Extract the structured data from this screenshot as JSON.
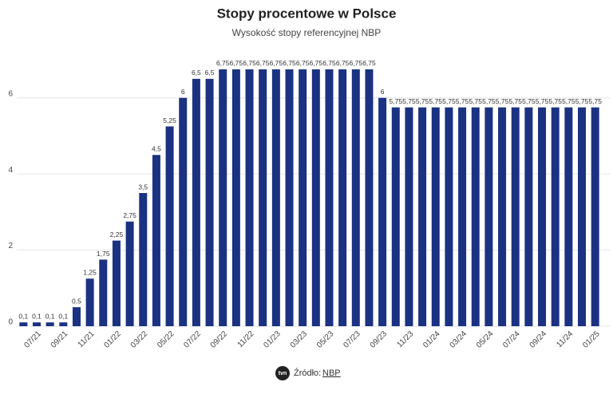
{
  "chart_data": {
    "type": "bar",
    "title": "Stopy procentowe w Polsce",
    "subtitle": "Wysokość stopy referencyjnej NBP",
    "categories": [
      null,
      "07/21",
      null,
      "09/21",
      null,
      "11/21",
      null,
      "01/22",
      null,
      "03/22",
      null,
      "05/22",
      null,
      "07/22",
      null,
      "09/22",
      null,
      "11/22",
      null,
      "01/23",
      null,
      "03/23",
      null,
      "05/23",
      null,
      "07/23",
      null,
      "09/23",
      null,
      "11/23",
      null,
      "01/24",
      null,
      "03/24",
      null,
      "05/24",
      null,
      "07/24",
      null,
      "09/24",
      null,
      "11/24",
      null,
      "01/25"
    ],
    "values": [
      0.1,
      0.1,
      0.1,
      0.1,
      0.5,
      1.25,
      1.75,
      2.25,
      2.75,
      3.5,
      4.5,
      5.25,
      6,
      6.5,
      6.5,
      6.75,
      6.75,
      6.75,
      6.75,
      6.75,
      6.75,
      6.75,
      6.75,
      6.75,
      6.75,
      6.75,
      6.75,
      6,
      5.75,
      5.75,
      5.75,
      5.75,
      5.75,
      5.75,
      5.75,
      5.75,
      5.75,
      5.75,
      5.75,
      5.75,
      5.75,
      5.75,
      5.75,
      5.75
    ],
    "value_labels": [
      "0,1",
      "0,1",
      "0,1",
      "0,1",
      "0,5",
      "1,25",
      "1,75",
      "2,25",
      "2,75",
      "3,5",
      "4,5",
      "5,25",
      "6",
      "6,5",
      "6,5",
      "6,75",
      "6,75",
      "6,75",
      "6,75",
      "6,75",
      "6,75",
      "6,75",
      "6,75",
      "6,75",
      "6,75",
      "6,75",
      "6,75",
      "6",
      "5,75",
      "5,75",
      "5,75",
      "5,75",
      "5,75",
      "5,75",
      "5,75",
      "5,75",
      "5,75",
      "5,75",
      "5,75",
      "5,75",
      "5,75",
      "5,75",
      "5,75",
      "5,75"
    ],
    "color": "#1b3282",
    "ylim": [
      0,
      7
    ],
    "yticks": [
      0,
      2,
      4,
      6
    ],
    "grid": true,
    "source_label": "Źródło:",
    "source_link": "NBP",
    "logo": "tvn"
  }
}
